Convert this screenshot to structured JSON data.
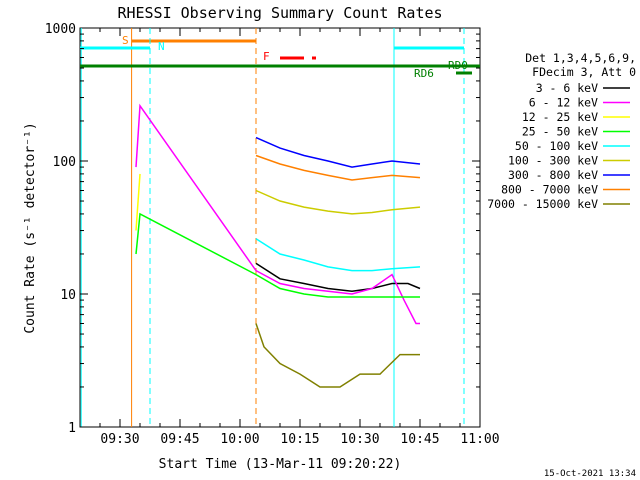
{
  "chart_data": {
    "type": "line",
    "title": "RHESSI Observing Summary Count Rates",
    "xlabel": "Start Time (13-Mar-11 09:20:22)",
    "ylabel": "Count Rate (s⁻¹ detector⁻¹)",
    "y_scale": "log",
    "ylim": [
      1,
      1000
    ],
    "xlim_minutes": [
      0,
      100
    ],
    "x_ticks": [
      {
        "t": 10,
        "label": "09:30"
      },
      {
        "t": 25,
        "label": "09:45"
      },
      {
        "t": 40,
        "label": "10:00"
      },
      {
        "t": 55,
        "label": "10:15"
      },
      {
        "t": 70,
        "label": "10:30"
      },
      {
        "t": 85,
        "label": "10:45"
      },
      {
        "t": 100,
        "label": "11:00"
      }
    ],
    "y_ticks": [
      {
        "v": 1,
        "label": "1"
      },
      {
        "v": 10,
        "label": "10"
      },
      {
        "v": 100,
        "label": "100"
      },
      {
        "v": 1000,
        "label": "1000"
      }
    ],
    "legend_header": [
      "Det 1,3,4,5,6,9,",
      "FDecim 3, Att 0"
    ],
    "series": [
      {
        "name": "3 - 6 keV",
        "color": "#000000",
        "x": [
          44,
          50,
          56,
          62,
          68,
          73,
          78,
          82,
          85
        ],
        "y": [
          17,
          13,
          12,
          11,
          10.5,
          11,
          12,
          12,
          11
        ]
      },
      {
        "name": "6 - 12 keV",
        "color": "#ff00ff",
        "x": [
          14,
          15,
          44,
          50,
          56,
          62,
          68,
          73,
          78,
          81,
          84,
          85
        ],
        "y": [
          90,
          260,
          15,
          12,
          11,
          10.5,
          10,
          11,
          14,
          9,
          6,
          6
        ]
      },
      {
        "name": "12 - 25 keV",
        "color": "#ffff00",
        "x": [
          14,
          15
        ],
        "y": [
          30,
          80
        ]
      },
      {
        "name": "25 - 50 keV",
        "color": "#00ff00",
        "x": [
          14,
          15,
          44,
          50,
          56,
          62,
          68,
          73,
          78,
          85
        ],
        "y": [
          20,
          40,
          14,
          11,
          10,
          9.5,
          9.5,
          9.5,
          9.5,
          9.5
        ]
      },
      {
        "name": "50 - 100 keV",
        "color": "#00ffff",
        "x": [
          44,
          50,
          56,
          62,
          68,
          73,
          78,
          85
        ],
        "y": [
          26,
          20,
          18,
          16,
          15,
          15,
          15.5,
          16
        ]
      },
      {
        "name": "100 - 300 keV",
        "color": "#cccc00",
        "x": [
          44,
          50,
          56,
          62,
          68,
          73,
          78,
          85
        ],
        "y": [
          60,
          50,
          45,
          42,
          40,
          41,
          43,
          45
        ]
      },
      {
        "name": "300 - 800 keV",
        "color": "#0000ff",
        "x": [
          44,
          50,
          56,
          62,
          68,
          73,
          78,
          85
        ],
        "y": [
          150,
          125,
          110,
          100,
          90,
          95,
          100,
          95
        ]
      },
      {
        "name": "800 - 7000 keV",
        "color": "#ff8000",
        "x": [
          44,
          50,
          56,
          62,
          68,
          73,
          78,
          85
        ],
        "y": [
          110,
          95,
          85,
          78,
          72,
          75,
          78,
          75
        ]
      },
      {
        "name": "7000 - 15000 keV",
        "color": "#808000",
        "x": [
          44,
          46,
          50,
          55,
          60,
          65,
          70,
          75,
          80,
          85
        ],
        "y": [
          6,
          4,
          3,
          2.5,
          2,
          2,
          2.5,
          2.5,
          3.5,
          3.5
        ]
      }
    ],
    "annotations": [
      {
        "label": "S",
        "color": "#ff8000"
      },
      {
        "label": "N",
        "color": "#00ffff"
      },
      {
        "label": "F",
        "color": "#ff0000"
      },
      {
        "label": "RD0",
        "color": "#008000"
      },
      {
        "label": "RD6",
        "color": "#008000"
      }
    ],
    "footer_date": "15-Oct-2021 13:34"
  }
}
